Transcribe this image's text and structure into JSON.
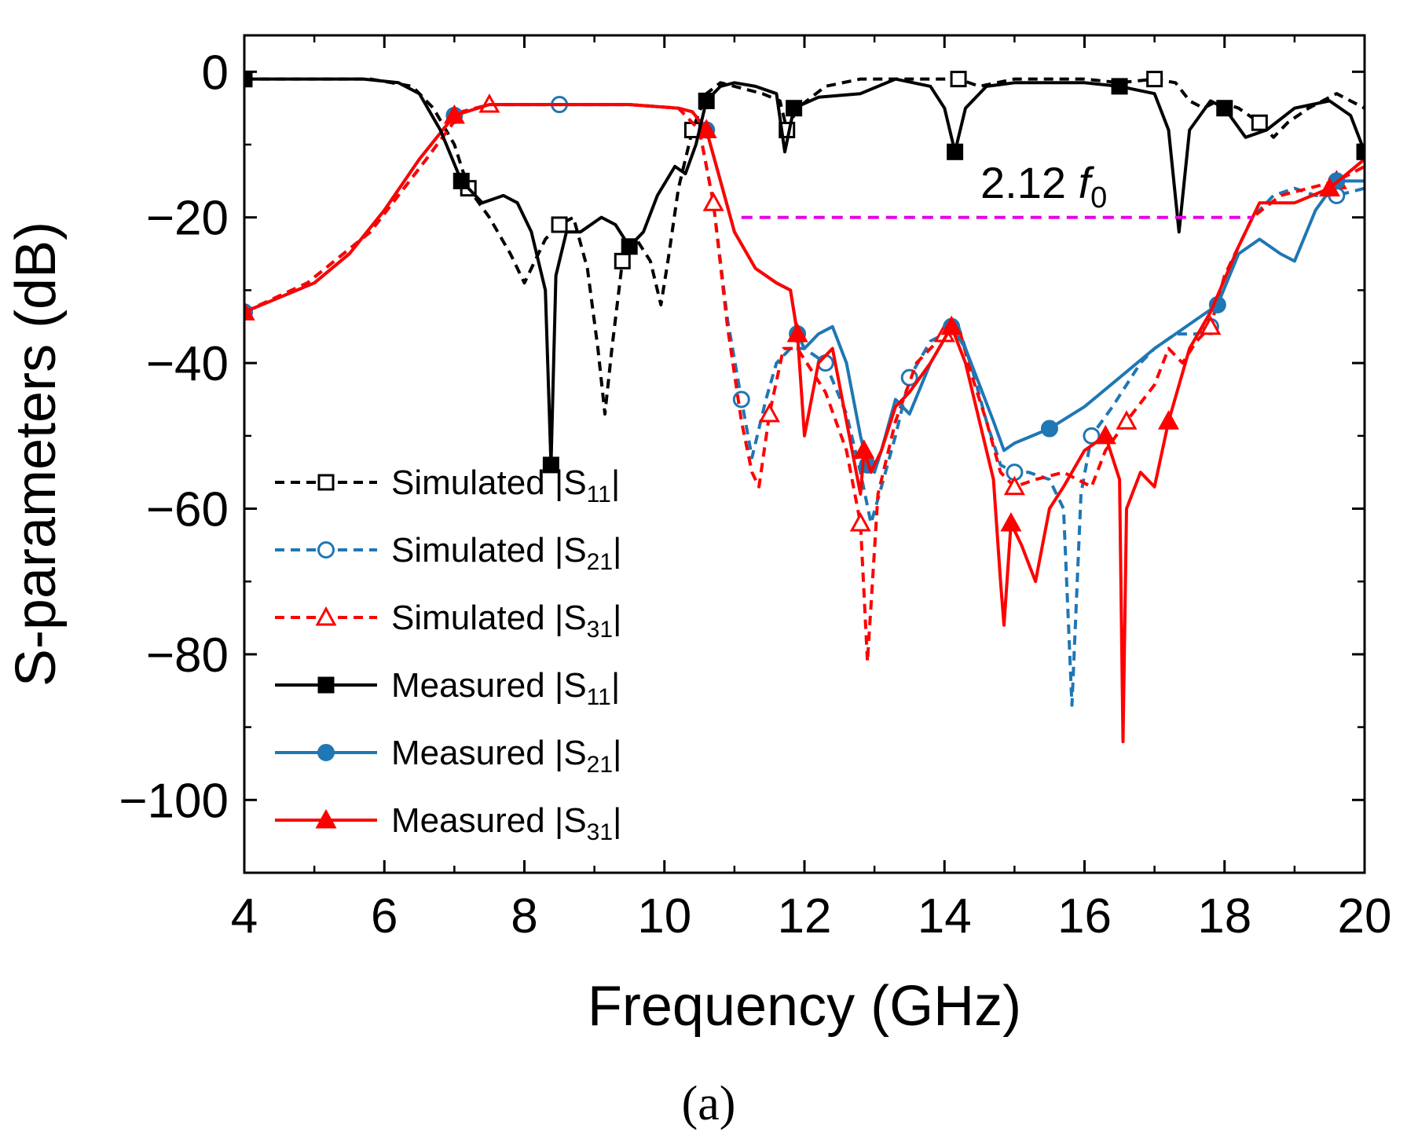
{
  "chart_data": {
    "type": "line",
    "title": "",
    "xlabel": "Frequency (GHz)",
    "ylabel": "S-parameters (dB)",
    "xlim": [
      4,
      20
    ],
    "ylim": [
      -110,
      5
    ],
    "xticks": [
      4,
      6,
      8,
      10,
      12,
      14,
      16,
      18,
      20
    ],
    "yticks": [
      0,
      -20,
      -40,
      -60,
      -80,
      -100
    ],
    "xtick_labels": [
      "4",
      "6",
      "8",
      "10",
      "12",
      "14",
      "16",
      "18",
      "20"
    ],
    "ytick_labels": [
      "0",
      "−20",
      "−40",
      "−60",
      "−80",
      "−100"
    ],
    "grid": false,
    "legend_position": "bottom-left",
    "caption": "(a)",
    "annotation": {
      "text": "2.12 ",
      "italic_text": "f",
      "subscript": "0",
      "line_y": -20,
      "line_x": [
        11.1,
        18.4
      ],
      "color": "#e600e6"
    },
    "series": [
      {
        "name": "Simulated |S11|",
        "legend_prefix": "Simulated |S",
        "legend_sub": "11",
        "legend_suffix": "|",
        "color": "#000000",
        "dash": "dashed",
        "marker": "square",
        "marker_fill": "open",
        "x": [
          4,
          5,
          5.8,
          6.4,
          6.7,
          7.0,
          7.2,
          7.5,
          7.8,
          8.0,
          8.1,
          8.3,
          8.5,
          8.7,
          8.9,
          9.05,
          9.15,
          9.25,
          9.4,
          9.6,
          9.8,
          9.95,
          10.05,
          10.2,
          10.4,
          10.6,
          10.8,
          11.0,
          11.4,
          11.65,
          11.75,
          11.9,
          12.3,
          12.8,
          13.3,
          13.8,
          14.2,
          14.5,
          15.0,
          15.5,
          16.0,
          16.5,
          17.0,
          17.3,
          17.5,
          17.7,
          17.9,
          18.2,
          18.5,
          18.7,
          18.9,
          19.2,
          19.6,
          20
        ],
        "y": [
          -1,
          -1,
          -1,
          -2,
          -5,
          -10,
          -16,
          -20,
          -25,
          -29,
          -27,
          -23,
          -21,
          -20,
          -27,
          -38,
          -47,
          -38,
          -26,
          -23,
          -26,
          -32,
          -26,
          -16,
          -8,
          -3,
          -1.5,
          -2,
          -3,
          -4,
          -8,
          -5,
          -2,
          -1,
          -1,
          -1,
          -1,
          -2,
          -1,
          -1,
          -1,
          -1.5,
          -1,
          -1.5,
          -4,
          -5,
          -4,
          -5,
          -7,
          -9,
          -7,
          -5,
          -3,
          -5
        ]
      },
      {
        "name": "Simulated |S21|",
        "legend_prefix": "Simulated |S",
        "legend_sub": "21",
        "legend_suffix": "|",
        "color": "#1f77b4",
        "dash": "dashed",
        "marker": "circle",
        "marker_fill": "open",
        "x": [
          4,
          4.9,
          5.8,
          6.6,
          7.1,
          7.5,
          8.5,
          9.5,
          10.2,
          10.5,
          10.7,
          10.9,
          11.1,
          11.25,
          11.45,
          11.6,
          11.8,
          12.0,
          12.3,
          12.6,
          12.8,
          12.95,
          13.1,
          13.3,
          13.5,
          13.8,
          14.2,
          14.4,
          14.6,
          14.8,
          15.0,
          15.2,
          15.5,
          15.7,
          15.82,
          15.95,
          16.1,
          16.4,
          16.8,
          17.0,
          17.3,
          17.6,
          17.8,
          18.0,
          18.4,
          18.7,
          19.0,
          19.3,
          19.6,
          20
        ],
        "y": [
          -33,
          -29,
          -22,
          -12,
          -5.5,
          -4.5,
          -4.5,
          -4.5,
          -5,
          -8,
          -18,
          -34,
          -45,
          -53,
          -45,
          -40,
          -38,
          -38,
          -40,
          -47,
          -55,
          -62,
          -57,
          -50,
          -42,
          -37,
          -35,
          -41,
          -48,
          -54,
          -55,
          -55,
          -56,
          -60,
          -87,
          -58,
          -50,
          -46,
          -40,
          -38,
          -36,
          -36,
          -35,
          -28,
          -20,
          -17,
          -16,
          -17,
          -17,
          -16
        ]
      },
      {
        "name": "Simulated |S31|",
        "legend_prefix": "Simulated |S",
        "legend_sub": "31",
        "legend_suffix": "|",
        "color": "#ff0000",
        "dash": "dashed",
        "marker": "triangle",
        "marker_fill": "open",
        "x": [
          4,
          4.9,
          5.8,
          6.6,
          7.1,
          7.5,
          8.5,
          9.5,
          10.2,
          10.5,
          10.7,
          10.9,
          11.1,
          11.25,
          11.35,
          11.5,
          11.7,
          11.9,
          12.3,
          12.6,
          12.8,
          12.9,
          13.05,
          13.3,
          13.6,
          14.0,
          14.2,
          14.4,
          14.6,
          14.8,
          15.0,
          15.3,
          15.7,
          16.1,
          16.3,
          16.6,
          17.0,
          17.2,
          17.4,
          17.6,
          17.8,
          18.0,
          18.4,
          18.8,
          19.2,
          19.6,
          20
        ],
        "y": [
          -33,
          -29,
          -22,
          -12,
          -5.5,
          -4.5,
          -4.5,
          -4.5,
          -5,
          -8,
          -18,
          -35,
          -48,
          -55,
          -57,
          -47,
          -38,
          -38,
          -44,
          -52,
          -62,
          -81,
          -58,
          -48,
          -40,
          -36,
          -35,
          -42,
          -48,
          -55,
          -57,
          -56,
          -55,
          -57,
          -52,
          -48,
          -43,
          -38,
          -40,
          -37,
          -35,
          -28,
          -20,
          -17,
          -16,
          -15,
          -13
        ]
      },
      {
        "name": "Measured |S11|",
        "legend_prefix": "Measured |S",
        "legend_sub": "11",
        "legend_suffix": "|",
        "color": "#000000",
        "dash": "solid",
        "marker": "square",
        "marker_fill": "filled",
        "x": [
          4,
          5,
          5.7,
          6.2,
          6.5,
          6.8,
          7.1,
          7.4,
          7.7,
          7.9,
          8.1,
          8.3,
          8.38,
          8.45,
          8.6,
          8.8,
          9.1,
          9.3,
          9.5,
          9.7,
          9.9,
          10.15,
          10.3,
          10.45,
          10.6,
          10.8,
          11.0,
          11.3,
          11.6,
          11.72,
          11.85,
          12.2,
          12.8,
          13.3,
          13.8,
          14.0,
          14.15,
          14.3,
          14.6,
          15.0,
          15.5,
          16.0,
          16.5,
          17.0,
          17.2,
          17.35,
          17.5,
          17.8,
          18.0,
          18.3,
          18.6,
          19.0,
          19.5,
          19.8,
          20
        ],
        "y": [
          -1,
          -1,
          -1,
          -1.5,
          -3,
          -8,
          -15,
          -18,
          -17,
          -18,
          -22,
          -30,
          -54,
          -28,
          -22,
          -22,
          -20,
          -21,
          -24,
          -22,
          -17,
          -13,
          -14,
          -10,
          -4,
          -2,
          -1.5,
          -2,
          -3,
          -11,
          -5,
          -3.5,
          -3,
          -1,
          -2,
          -5,
          -11,
          -5,
          -2,
          -1.5,
          -1.5,
          -1.5,
          -2,
          -3,
          -8,
          -22,
          -8,
          -4,
          -5,
          -9,
          -8,
          -5,
          -4,
          -6,
          -11
        ]
      },
      {
        "name": "Measured |S21|",
        "legend_prefix": "Measured |S",
        "legend_sub": "21",
        "legend_suffix": "|",
        "color": "#1f77b4",
        "dash": "solid",
        "marker": "circle",
        "marker_fill": "filled",
        "x": [
          4,
          4.5,
          5,
          5.5,
          6,
          6.5,
          7,
          7.5,
          8.5,
          9.5,
          10.2,
          10.4,
          10.6,
          10.8,
          11.0,
          11.3,
          11.6,
          11.8,
          11.9,
          12.0,
          12.2,
          12.4,
          12.6,
          12.8,
          12.9,
          13.0,
          13.1,
          13.3,
          13.5,
          13.8,
          14.1,
          14.3,
          14.5,
          14.7,
          14.85,
          15.0,
          15.5,
          16.0,
          16.5,
          17.0,
          17.3,
          17.6,
          17.9,
          18.2,
          18.5,
          18.8,
          19.0,
          19.3,
          19.6,
          20
        ],
        "y": [
          -33,
          -31,
          -29,
          -25,
          -19,
          -12,
          -6,
          -4.5,
          -4.5,
          -4.5,
          -5,
          -5.5,
          -8,
          -15,
          -22,
          -27,
          -29,
          -30,
          -36,
          -38,
          -36,
          -35,
          -40,
          -50,
          -54,
          -55,
          -52,
          -45,
          -47,
          -40,
          -35,
          -38,
          -43,
          -48,
          -52,
          -51,
          -49,
          -46,
          -42,
          -38,
          -36,
          -34,
          -32,
          -25,
          -23,
          -25,
          -26,
          -19,
          -15,
          -15
        ]
      },
      {
        "name": "Measured |S31|",
        "legend_prefix": "Measured |S",
        "legend_sub": "31",
        "legend_suffix": "|",
        "color": "#ff0000",
        "dash": "solid",
        "marker": "triangle",
        "marker_fill": "filled",
        "x": [
          4,
          4.5,
          5,
          5.5,
          6,
          6.5,
          7,
          7.5,
          8.5,
          9.5,
          10.2,
          10.4,
          10.6,
          10.8,
          11.0,
          11.3,
          11.6,
          11.8,
          11.9,
          12.0,
          12.2,
          12.4,
          12.6,
          12.8,
          12.85,
          12.95,
          13.1,
          13.3,
          13.5,
          13.8,
          14.1,
          14.3,
          14.5,
          14.7,
          14.8,
          14.85,
          14.95,
          15.1,
          15.3,
          15.5,
          15.7,
          16.0,
          16.3,
          16.5,
          16.55,
          16.6,
          16.8,
          17.0,
          17.2,
          17.5,
          17.8,
          18.2,
          18.5,
          19.0,
          19.5,
          20
        ],
        "y": [
          -33,
          -31,
          -29,
          -25,
          -19,
          -12,
          -6,
          -4.5,
          -4.5,
          -4.5,
          -5,
          -5.5,
          -8,
          -15,
          -22,
          -27,
          -29,
          -30,
          -36,
          -50,
          -40,
          -38,
          -48,
          -58,
          -52,
          -55,
          -52,
          -46,
          -44,
          -40,
          -35,
          -40,
          -48,
          -56,
          -70,
          -76,
          -62,
          -65,
          -70,
          -60,
          -57,
          -52,
          -50,
          -56,
          -92,
          -60,
          -55,
          -57,
          -48,
          -38,
          -33,
          -24,
          -18,
          -18,
          -16,
          -12
        ]
      }
    ]
  }
}
